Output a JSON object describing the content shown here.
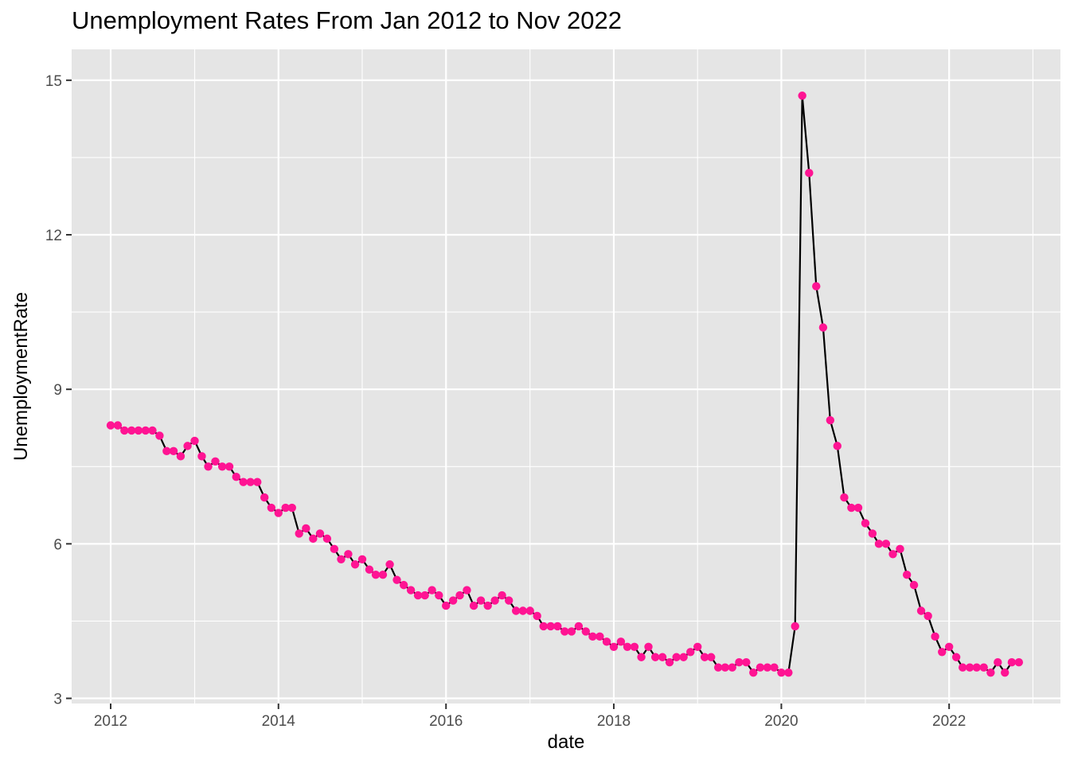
{
  "chart_data": {
    "type": "line",
    "title": "Unemployment Rates From Jan 2012 to Nov 2022",
    "xlabel": "date",
    "ylabel": "UnemploymentRate",
    "x_tick_labels": [
      "2012",
      "2014",
      "2016",
      "2018",
      "2020",
      "2022"
    ],
    "y_tick_labels": [
      "3",
      "6",
      "9",
      "12",
      "15"
    ],
    "xlim": [
      "2011-07-15",
      "2023-05-01"
    ],
    "ylim": [
      2.9,
      15.6
    ],
    "grid": true,
    "colors": {
      "panel": "#E5E5E5",
      "grid": "#FFFFFF",
      "line": "#000000",
      "points": "#FF1493",
      "tick": "#4D4D4D"
    },
    "series": [
      {
        "x": [
          "2012-01",
          "2012-02",
          "2012-03",
          "2012-04",
          "2012-05",
          "2012-06",
          "2012-07",
          "2012-08",
          "2012-09",
          "2012-10",
          "2012-11",
          "2012-12",
          "2013-01",
          "2013-02",
          "2013-03",
          "2013-04",
          "2013-05",
          "2013-06",
          "2013-07",
          "2013-08",
          "2013-09",
          "2013-10",
          "2013-11",
          "2013-12",
          "2014-01",
          "2014-02",
          "2014-03",
          "2014-04",
          "2014-05",
          "2014-06",
          "2014-07",
          "2014-08",
          "2014-09",
          "2014-10",
          "2014-11",
          "2014-12",
          "2015-01",
          "2015-02",
          "2015-03",
          "2015-04",
          "2015-05",
          "2015-06",
          "2015-07",
          "2015-08",
          "2015-09",
          "2015-10",
          "2015-11",
          "2015-12",
          "2016-01",
          "2016-02",
          "2016-03",
          "2016-04",
          "2016-05",
          "2016-06",
          "2016-07",
          "2016-08",
          "2016-09",
          "2016-10",
          "2016-11",
          "2016-12",
          "2017-01",
          "2017-02",
          "2017-03",
          "2017-04",
          "2017-05",
          "2017-06",
          "2017-07",
          "2017-08",
          "2017-09",
          "2017-10",
          "2017-11",
          "2017-12",
          "2018-01",
          "2018-02",
          "2018-03",
          "2018-04",
          "2018-05",
          "2018-06",
          "2018-07",
          "2018-08",
          "2018-09",
          "2018-10",
          "2018-11",
          "2018-12",
          "2019-01",
          "2019-02",
          "2019-03",
          "2019-04",
          "2019-05",
          "2019-06",
          "2019-07",
          "2019-08",
          "2019-09",
          "2019-10",
          "2019-11",
          "2019-12",
          "2020-01",
          "2020-02",
          "2020-03",
          "2020-04",
          "2020-05",
          "2020-06",
          "2020-07",
          "2020-08",
          "2020-09",
          "2020-10",
          "2020-11",
          "2020-12",
          "2021-01",
          "2021-02",
          "2021-03",
          "2021-04",
          "2021-05",
          "2021-06",
          "2021-07",
          "2021-08",
          "2021-09",
          "2021-10",
          "2021-11",
          "2021-12",
          "2022-01",
          "2022-02",
          "2022-03",
          "2022-04",
          "2022-05",
          "2022-06",
          "2022-07",
          "2022-08",
          "2022-09",
          "2022-10",
          "2022-11"
        ],
        "values": [
          8.3,
          8.3,
          8.2,
          8.2,
          8.2,
          8.2,
          8.2,
          8.1,
          7.8,
          7.8,
          7.7,
          7.9,
          8.0,
          7.7,
          7.5,
          7.6,
          7.5,
          7.5,
          7.3,
          7.2,
          7.2,
          7.2,
          6.9,
          6.7,
          6.6,
          6.7,
          6.7,
          6.2,
          6.3,
          6.1,
          6.2,
          6.1,
          5.9,
          5.7,
          5.8,
          5.6,
          5.7,
          5.5,
          5.4,
          5.4,
          5.6,
          5.3,
          5.2,
          5.1,
          5.0,
          5.0,
          5.1,
          5.0,
          4.8,
          4.9,
          5.0,
          5.1,
          4.8,
          4.9,
          4.8,
          4.9,
          5.0,
          4.9,
          4.7,
          4.7,
          4.7,
          4.6,
          4.4,
          4.4,
          4.4,
          4.3,
          4.3,
          4.4,
          4.3,
          4.2,
          4.2,
          4.1,
          4.0,
          4.1,
          4.0,
          4.0,
          3.8,
          4.0,
          3.8,
          3.8,
          3.7,
          3.8,
          3.8,
          3.9,
          4.0,
          3.8,
          3.8,
          3.6,
          3.6,
          3.6,
          3.7,
          3.7,
          3.5,
          3.6,
          3.6,
          3.6,
          3.5,
          3.5,
          4.4,
          14.7,
          13.2,
          11.0,
          10.2,
          8.4,
          7.9,
          6.9,
          6.7,
          6.7,
          6.4,
          6.2,
          6.0,
          6.0,
          5.8,
          5.9,
          5.4,
          5.2,
          4.7,
          4.6,
          4.2,
          3.9,
          4.0,
          3.8,
          3.6,
          3.6,
          3.6,
          3.6,
          3.5,
          3.7,
          3.5,
          3.7,
          3.7
        ]
      }
    ]
  }
}
